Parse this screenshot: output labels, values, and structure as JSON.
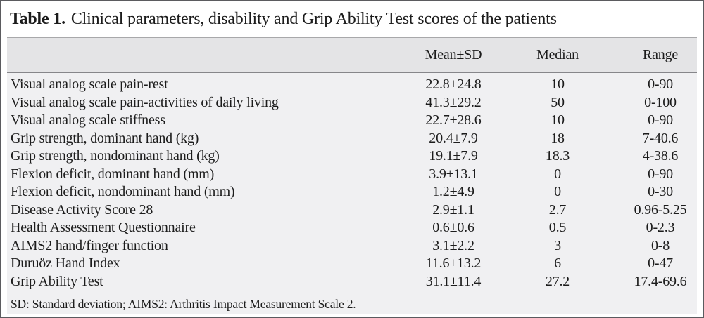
{
  "caption": {
    "label": "Table 1.",
    "text": "Clinical parameters, disability and Grip Ability Test scores of the patients"
  },
  "table": {
    "header": {
      "parameter": "",
      "mean_sd": "Mean±SD",
      "median": "Median",
      "range": "Range"
    },
    "rows": [
      {
        "parameter": "Visual analog scale pain-rest",
        "mean_sd": "22.8±24.8",
        "median": "10",
        "range": "0-90"
      },
      {
        "parameter": "Visual analog scale pain-activities of daily living",
        "mean_sd": "41.3±29.2",
        "median": "50",
        "range": "0-100"
      },
      {
        "parameter": "Visual analog scale stiffness",
        "mean_sd": "22.7±28.6",
        "median": "10",
        "range": "0-90"
      },
      {
        "parameter": "Grip strength, dominant hand (kg)",
        "mean_sd": "20.4±7.9",
        "median": "18",
        "range": "7-40.6"
      },
      {
        "parameter": "Grip strength, nondominant hand (kg)",
        "mean_sd": "19.1±7.9",
        "median": "18.3",
        "range": "4-38.6"
      },
      {
        "parameter": "Flexion deficit, dominant hand (mm)",
        "mean_sd": "3.9±13.1",
        "median": "0",
        "range": "0-90"
      },
      {
        "parameter": "Flexion deficit, nondominant hand (mm)",
        "mean_sd": "1.2±4.9",
        "median": "0",
        "range": "0-30"
      },
      {
        "parameter": "Disease Activity Score 28",
        "mean_sd": "2.9±1.1",
        "median": "2.7",
        "range": "0.96-5.25"
      },
      {
        "parameter": "Health Assessment Questionnaire",
        "mean_sd": "0.6±0.6",
        "median": "0.5",
        "range": "0-2.3"
      },
      {
        "parameter": "AIMS2 hand/finger function",
        "mean_sd": "3.1±2.2",
        "median": "3",
        "range": "0-8"
      },
      {
        "parameter": "Duruöz Hand Index",
        "mean_sd": "11.6±13.2",
        "median": "6",
        "range": "0-47"
      },
      {
        "parameter": "Grip Ability Test",
        "mean_sd": "31.1±11.4",
        "median": "27.2",
        "range": "17.4-69.6"
      }
    ],
    "footnote": "SD: Standard deviation; AIMS2: Arthritis Impact Measurement Scale 2."
  },
  "colors": {
    "frame_border": "#5b5b5f",
    "header_band_bg": "#e4e4e6",
    "body_bg": "#f0f0f2",
    "header_top_rule": "#a8a8aa",
    "header_bottom_rule": "#86868a",
    "footnote_rule": "#98989a",
    "text": "#1c1c1c"
  }
}
